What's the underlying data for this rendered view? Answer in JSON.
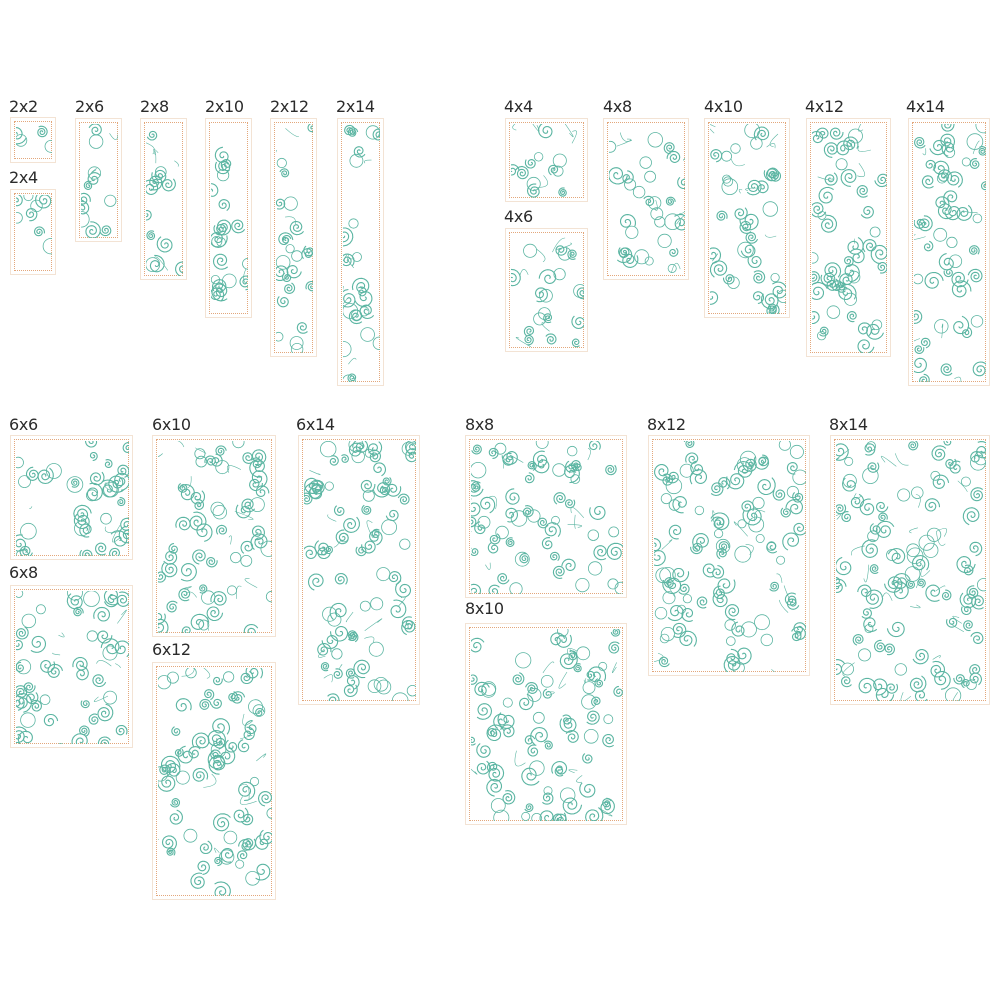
{
  "colors": {
    "stitch": "#5bb5a2",
    "inner_border": "#e3a77b",
    "outer_border": "#f3e3d4",
    "label": "#2b2b2b"
  },
  "sizes": [
    {
      "label": "2x2"
    },
    {
      "label": "2x4"
    },
    {
      "label": "2x6"
    },
    {
      "label": "2x8"
    },
    {
      "label": "2x10"
    },
    {
      "label": "2x12"
    },
    {
      "label": "2x14"
    },
    {
      "label": "4x4"
    },
    {
      "label": "4x6"
    },
    {
      "label": "4x8"
    },
    {
      "label": "4x10"
    },
    {
      "label": "4x12"
    },
    {
      "label": "4x14"
    },
    {
      "label": "6x6"
    },
    {
      "label": "6x8"
    },
    {
      "label": "6x10"
    },
    {
      "label": "6x12"
    },
    {
      "label": "6x14"
    },
    {
      "label": "8x8"
    },
    {
      "label": "8x10"
    },
    {
      "label": "8x12"
    },
    {
      "label": "8x14"
    }
  ]
}
